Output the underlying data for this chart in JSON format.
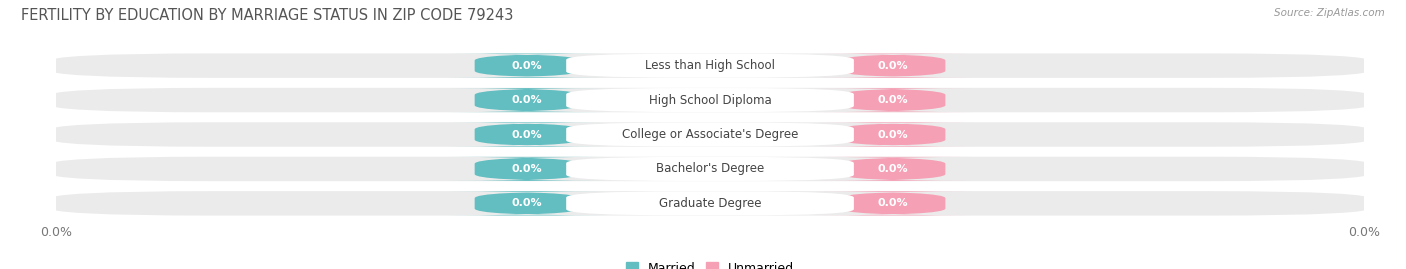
{
  "title": "FERTILITY BY EDUCATION BY MARRIAGE STATUS IN ZIP CODE 79243",
  "source": "Source: ZipAtlas.com",
  "categories": [
    "Less than High School",
    "High School Diploma",
    "College or Associate's Degree",
    "Bachelor's Degree",
    "Graduate Degree"
  ],
  "married_values": [
    0.0,
    0.0,
    0.0,
    0.0,
    0.0
  ],
  "unmarried_values": [
    0.0,
    0.0,
    0.0,
    0.0,
    0.0
  ],
  "married_color": "#62bec1",
  "unmarried_color": "#f5a0b5",
  "row_bg_color": "#ebebeb",
  "label_box_color": "#ffffff",
  "tick_label_left": "0.0%",
  "tick_label_right": "0.0%",
  "title_fontsize": 10.5,
  "bar_value_fontsize": 8,
  "cat_fontsize": 8.5,
  "tick_fontsize": 9,
  "legend_married": "Married",
  "legend_unmarried": "Unmarried",
  "background_color": "#ffffff",
  "title_color": "#555555",
  "source_color": "#999999",
  "cat_text_color": "#444444"
}
